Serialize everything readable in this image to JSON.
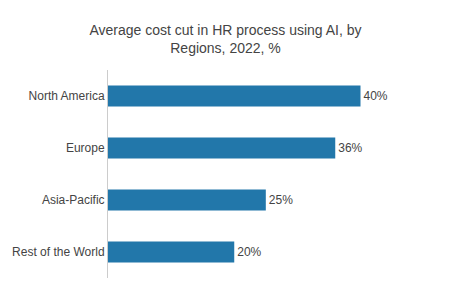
{
  "chart_data": {
    "type": "bar",
    "orientation": "horizontal",
    "title": "Average cost cut in HR process using AI, by\nRegions, 2022, %",
    "categories": [
      "Rest of the World",
      "Asia-Pacific",
      "Europe",
      "North America"
    ],
    "values": [
      20,
      25,
      36,
      40
    ],
    "value_labels": [
      "20%",
      "25%",
      "36%",
      "40%"
    ],
    "data_labels": true,
    "color": "#2277aa",
    "xlim": [
      0,
      48
    ],
    "grid": false,
    "tick_labels": "y"
  }
}
